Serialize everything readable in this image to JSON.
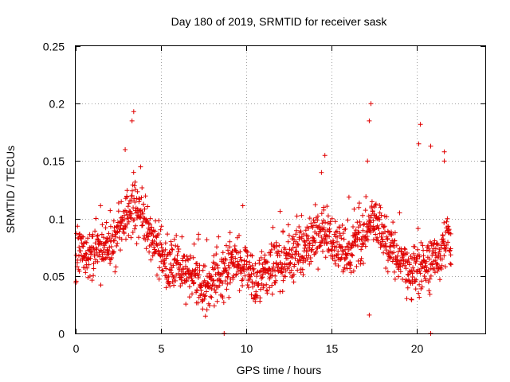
{
  "chart_data": {
    "type": "scatter",
    "title": "Day 180 of 2019, SRMTID for receiver sask",
    "xlabel": "GPS time / hours",
    "ylabel": "SRMTID / TECUs",
    "xlim": [
      0,
      24
    ],
    "ylim": [
      0,
      0.25
    ],
    "xticks": [
      0,
      5,
      10,
      15,
      20
    ],
    "xtick_labels": [
      "0",
      "5",
      "10",
      "15",
      "20"
    ],
    "yticks": [
      0,
      0.05,
      0.1,
      0.15,
      0.2,
      0.25
    ],
    "ytick_labels": [
      "0",
      "0.05",
      "0.1",
      "0.15",
      "0.2",
      "0.25"
    ],
    "grid": true,
    "marker": "+",
    "color": "#e00000",
    "series": [
      {
        "name": "SRMTID",
        "data_time_range_hours": [
          0,
          22
        ],
        "trend_x": [
          0,
          1,
          2,
          2.5,
          3,
          3.5,
          4,
          5,
          6,
          7,
          7.5,
          8,
          9,
          10,
          10.5,
          11,
          12,
          13,
          14,
          14.5,
          15,
          16,
          17,
          17.5,
          18,
          19,
          19.5,
          20,
          20.5,
          21,
          21.5,
          22
        ],
        "trend_y": [
          0.068,
          0.07,
          0.078,
          0.088,
          0.1,
          0.11,
          0.098,
          0.065,
          0.058,
          0.048,
          0.035,
          0.045,
          0.06,
          0.058,
          0.045,
          0.052,
          0.062,
          0.07,
          0.078,
          0.095,
          0.08,
          0.07,
          0.085,
          0.1,
          0.08,
          0.065,
          0.05,
          0.055,
          0.06,
          0.065,
          0.075,
          0.078
        ],
        "spread": 0.022,
        "peaks": [
          {
            "x": 3.4,
            "y": 0.193
          },
          {
            "x": 3.3,
            "y": 0.185
          },
          {
            "x": 2.9,
            "y": 0.16
          },
          {
            "x": 3.8,
            "y": 0.145
          },
          {
            "x": 14.6,
            "y": 0.155
          },
          {
            "x": 14.4,
            "y": 0.14
          },
          {
            "x": 17.3,
            "y": 0.2
          },
          {
            "x": 17.2,
            "y": 0.185
          },
          {
            "x": 17.1,
            "y": 0.15
          },
          {
            "x": 20.2,
            "y": 0.182
          },
          {
            "x": 20.1,
            "y": 0.165
          },
          {
            "x": 20.8,
            "y": 0.163
          },
          {
            "x": 21.6,
            "y": 0.158
          },
          {
            "x": 21.6,
            "y": 0.15
          },
          {
            "x": 8.7,
            "y": 0.0
          },
          {
            "x": 20.8,
            "y": 0.0
          },
          {
            "x": 17.2,
            "y": 0.016
          },
          {
            "x": 7.6,
            "y": 0.015
          }
        ]
      }
    ]
  }
}
